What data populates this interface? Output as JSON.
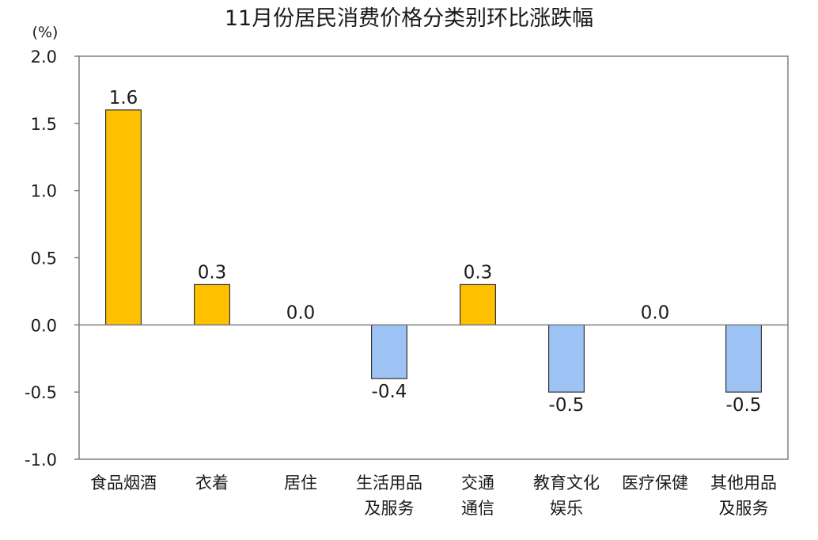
{
  "chart_data": {
    "type": "bar",
    "title": "11月份居民消费价格分类别环比涨跌幅",
    "unit_label": "(%)",
    "xlabel": "",
    "ylabel": "",
    "ylim": [
      -1.0,
      2.0
    ],
    "yticks": [
      2.0,
      1.5,
      1.0,
      0.5,
      0.0,
      -0.5,
      -1.0
    ],
    "ytick_labels": [
      "2.0",
      "1.5",
      "1.0",
      "0.5",
      "0.0",
      "-0.5",
      "-1.0"
    ],
    "categories": [
      [
        "食品烟酒"
      ],
      [
        "衣着"
      ],
      [
        "居住"
      ],
      [
        "生活用品",
        "及服务"
      ],
      [
        "交通",
        "通信"
      ],
      [
        "教育文化",
        "娱乐"
      ],
      [
        "医疗保健"
      ],
      [
        "其他用品",
        "及服务"
      ]
    ],
    "values": [
      1.6,
      0.3,
      0.0,
      -0.4,
      0.3,
      -0.5,
      0.0,
      -0.5
    ],
    "value_labels": [
      "1.6",
      "0.3",
      "0.0",
      "-0.4",
      "0.3",
      "-0.5",
      "0.0",
      "-0.5"
    ],
    "grid": false,
    "legend": "none",
    "colors": {
      "positive": "#FFC000",
      "negative": "#9DC3F5",
      "bar_stroke": "#333333",
      "axis": "#7f7f7f",
      "text": "#1a1a1a"
    }
  }
}
